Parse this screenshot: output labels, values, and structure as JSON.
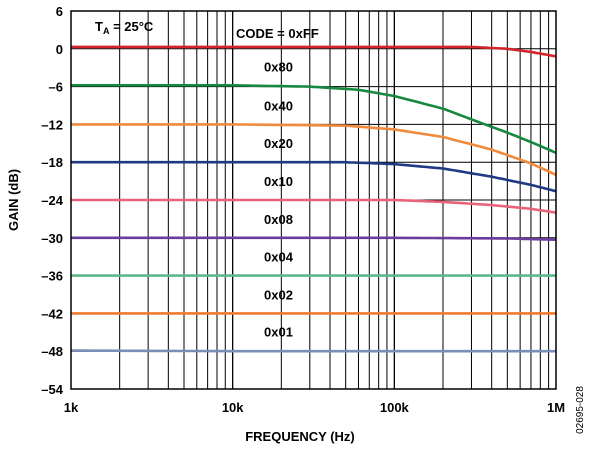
{
  "chart_data": {
    "type": "line",
    "x_scale": "log",
    "xlabel": "FREQUENCY (Hz)",
    "ylabel": "GAIN (dB)",
    "xlim": [
      1000,
      1000000
    ],
    "ylim": [
      -54,
      6
    ],
    "x_ticks": [
      {
        "value": 1000,
        "label": "1k"
      },
      {
        "value": 10000,
        "label": "10k"
      },
      {
        "value": 100000,
        "label": "100k"
      },
      {
        "value": 1000000,
        "label": "1M"
      }
    ],
    "y_ticks": [
      {
        "value": 6,
        "label": "6"
      },
      {
        "value": 0,
        "label": "0"
      },
      {
        "value": -6,
        "label": "–6"
      },
      {
        "value": -12,
        "label": "–12"
      },
      {
        "value": -18,
        "label": "–18"
      },
      {
        "value": -24,
        "label": "–24"
      },
      {
        "value": -30,
        "label": "–30"
      },
      {
        "value": -36,
        "label": "–36"
      },
      {
        "value": -42,
        "label": "–42"
      },
      {
        "value": -48,
        "label": "–48"
      },
      {
        "value": -54,
        "label": "–54"
      }
    ],
    "grid": true,
    "annotations": {
      "condition_main": "T",
      "condition_sub": "A",
      "condition_value": " = 25°C",
      "code_prefix": "CODE = ",
      "figure_id": "02695-028"
    },
    "series": [
      {
        "name": "0xFF",
        "color": "#d4242b",
        "x": [
          1000,
          10000,
          100000,
          300000,
          500000,
          700000,
          1000000
        ],
        "y": [
          0.3,
          0.3,
          0.3,
          0.3,
          0.0,
          -0.5,
          -1.2
        ]
      },
      {
        "name": "0x80",
        "color": "#17893e",
        "x": [
          1000,
          10000,
          30000,
          60000,
          100000,
          200000,
          300000,
          500000,
          700000,
          1000000
        ],
        "y": [
          -5.8,
          -5.8,
          -6.0,
          -6.5,
          -7.5,
          -9.5,
          -11.2,
          -13.3,
          -14.8,
          -16.5
        ]
      },
      {
        "name": "0x40",
        "color": "#f08a3c",
        "x": [
          1000,
          10000,
          50000,
          100000,
          200000,
          400000,
          700000,
          1000000
        ],
        "y": [
          -12.0,
          -12.0,
          -12.2,
          -12.8,
          -14.0,
          -16.0,
          -18.2,
          -20.0
        ]
      },
      {
        "name": "0x20",
        "color": "#1f3a82",
        "x": [
          1000,
          10000,
          50000,
          100000,
          200000,
          400000,
          700000,
          1000000
        ],
        "y": [
          -18.0,
          -18.0,
          -18.0,
          -18.3,
          -19.0,
          -20.3,
          -21.6,
          -22.6
        ]
      },
      {
        "name": "0x10",
        "color": "#e8627a",
        "x": [
          1000,
          10000,
          100000,
          200000,
          400000,
          700000,
          1000000
        ],
        "y": [
          -24.0,
          -24.0,
          -24.0,
          -24.3,
          -24.8,
          -25.4,
          -26.0
        ]
      },
      {
        "name": "0x08",
        "color": "#6a3c9c",
        "x": [
          1000,
          10000,
          100000,
          500000,
          1000000
        ],
        "y": [
          -30.0,
          -30.0,
          -30.0,
          -30.1,
          -30.3
        ]
      },
      {
        "name": "0x04",
        "color": "#5cb88a",
        "x": [
          1000,
          10000,
          100000,
          1000000
        ],
        "y": [
          -36.0,
          -36.0,
          -36.0,
          -36.0
        ]
      },
      {
        "name": "0x02",
        "color": "#f07a30",
        "x": [
          1000,
          10000,
          100000,
          1000000
        ],
        "y": [
          -42.0,
          -42.0,
          -42.0,
          -42.0
        ]
      },
      {
        "name": "0x01",
        "color": "#7a8fb5",
        "x": [
          1000,
          10000,
          100000,
          1000000
        ],
        "y": [
          -47.9,
          -48.0,
          -48.0,
          -48.0
        ]
      }
    ]
  }
}
